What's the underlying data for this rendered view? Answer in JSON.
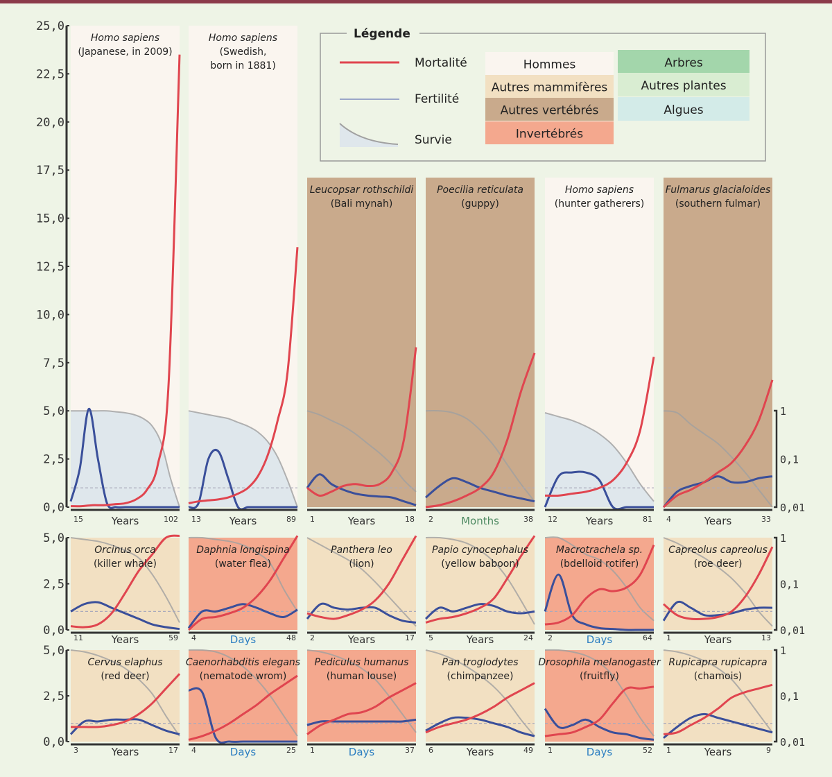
{
  "legend": {
    "title": "Légende",
    "lines": [
      "Mortalité",
      "Fertilité",
      "Survie"
    ],
    "categories": [
      {
        "label": "Hommes",
        "color": "#faf5ef"
      },
      {
        "label": "Autres mammifères",
        "color": "#f2e0c2"
      },
      {
        "label": "Autres vertébrés",
        "color": "#c9aa8c"
      },
      {
        "label": "Invertébrés",
        "color": "#f4a88e"
      },
      {
        "label": "Arbres",
        "color": "#a3d6ab"
      },
      {
        "label": "Autres plantes",
        "color": "#d9edd2"
      },
      {
        "label": "Algues",
        "color": "#d3ebe8"
      }
    ]
  },
  "colors": {
    "mortality": "#e0454f",
    "fertility": "#3a4f9a",
    "survival": "#a0a0a0",
    "survival_fill": "#dfe7ec",
    "unit_days": "#2d7fc1",
    "unit_months": "#4f8a63",
    "frame": "#8b3a4a"
  },
  "chart_data": {
    "type": "line",
    "row1_left_ticks": [
      "25,0",
      "22,5",
      "20,0",
      "17,5",
      "15,0",
      "12,5",
      "10,0",
      "7,5",
      "5,0",
      "2,5",
      "0,0"
    ],
    "row_left_ticks": [
      "5,0",
      "2,5",
      "0,0"
    ],
    "right_ticks": [
      "1",
      "0,1",
      "0,01"
    ],
    "panels": [
      {
        "row": 1,
        "species": "Homo sapiens",
        "common": [
          "(Japanese, in 2009)"
        ],
        "category": "Hommes",
        "unit": "Years",
        "range": [
          15,
          102
        ],
        "tall": true,
        "mortality": [
          0.05,
          0.05,
          0.1,
          0.1,
          0.15,
          0.2,
          0.4,
          0.9,
          2.2,
          6.5,
          23.5
        ],
        "fertility": [
          0.3,
          2,
          5.1,
          2.5,
          0.2,
          0,
          0,
          0,
          0,
          0,
          0,
          0,
          0
        ],
        "survival": [
          5,
          5,
          5,
          5,
          5,
          4.95,
          4.9,
          4.8,
          4.6,
          4.2,
          3.3,
          1.5,
          0
        ]
      },
      {
        "row": 1,
        "species": "Homo sapiens",
        "common": [
          "(Swedish,",
          "born in 1881)"
        ],
        "category": "Hommes",
        "unit": "Years",
        "range": [
          13,
          89
        ],
        "tall": true,
        "mortality": [
          0.2,
          0.3,
          0.35,
          0.4,
          0.5,
          0.7,
          1.0,
          1.6,
          2.7,
          4.5,
          7,
          13.5
        ],
        "fertility": [
          0,
          0.2,
          2.5,
          2.9,
          1.5,
          0,
          0,
          0,
          0,
          0,
          0,
          0
        ],
        "survival": [
          5,
          4.9,
          4.8,
          4.7,
          4.6,
          4.4,
          4.2,
          3.9,
          3.4,
          2.6,
          1.4,
          0
        ]
      },
      {
        "row": 1,
        "species": "Leucopsar rothschildi",
        "common": [
          "(Bali mynah)"
        ],
        "category": "Autres vertébrés",
        "unit": "Years",
        "range": [
          1,
          18
        ],
        "mortality": [
          1,
          0.6,
          0.8,
          1.1,
          1.2,
          1.1,
          1.2,
          1.8,
          3.5,
          8.3
        ],
        "fertility": [
          1,
          1.7,
          1.2,
          0.9,
          0.7,
          0.6,
          0.55,
          0.5,
          0.3,
          0.1
        ],
        "survival": [
          5,
          4.8,
          4.5,
          4.2,
          3.8,
          3.3,
          2.8,
          2.2,
          1.4,
          0.8
        ]
      },
      {
        "row": 1,
        "species": "Poecilia reticulata",
        "common": [
          "(guppy)"
        ],
        "category": "Autres vertébrés",
        "unit": "Months",
        "range": [
          2,
          38
        ],
        "mortality": [
          0,
          0.1,
          0.3,
          0.6,
          1,
          1.8,
          3.5,
          6,
          8
        ],
        "fertility": [
          0.5,
          1.1,
          1.5,
          1.3,
          1,
          0.8,
          0.6,
          0.45,
          0.3
        ],
        "survival": [
          5,
          5,
          4.9,
          4.6,
          4,
          3.2,
          2.2,
          1.2,
          0.3
        ]
      },
      {
        "row": 1,
        "species": "Homo sapiens",
        "common": [
          "(hunter gatherers)"
        ],
        "category": "Hommes",
        "unit": "Years",
        "range": [
          12,
          81
        ],
        "mortality": [
          0.6,
          0.6,
          0.7,
          0.8,
          1,
          1.4,
          2.3,
          4,
          7.8
        ],
        "fertility": [
          0,
          1.6,
          1.8,
          1.8,
          1.4,
          0,
          0,
          0,
          0
        ],
        "survival": [
          4.9,
          4.7,
          4.5,
          4.2,
          3.8,
          3.2,
          2.3,
          1.2,
          0.3
        ]
      },
      {
        "row": 1,
        "species": "Fulmarus glacialoides",
        "common": [
          "(southern fulmar)"
        ],
        "category": "Autres vertébrés",
        "unit": "Years",
        "range": [
          4,
          33
        ],
        "mortality": [
          0,
          0.6,
          0.9,
          1.3,
          1.8,
          2.3,
          3.2,
          4.5,
          6.6
        ],
        "fertility": [
          0,
          0.8,
          1.1,
          1.3,
          1.6,
          1.3,
          1.3,
          1.5,
          1.6
        ],
        "survival": [
          5,
          4.9,
          4.3,
          3.8,
          3.3,
          2.6,
          1.8,
          0.9,
          0
        ]
      },
      {
        "row": 2,
        "species": "Orcinus orca",
        "common": [
          "(killer whale)"
        ],
        "category": "Autres mammifères",
        "unit": "Years",
        "range": [
          11,
          59
        ],
        "mortality": [
          0.2,
          0.15,
          0.3,
          0.9,
          2,
          3.2,
          4.1,
          5,
          5.6
        ],
        "fertility": [
          1,
          1.4,
          1.5,
          1.2,
          0.9,
          0.6,
          0.3,
          0.15,
          0.05
        ],
        "survival": [
          5,
          4.9,
          4.8,
          4.6,
          4.3,
          3.9,
          3,
          1.8,
          0.4
        ]
      },
      {
        "row": 2,
        "species": "Daphnia longispina",
        "common": [
          "(water flea)"
        ],
        "category": "Invertébrés",
        "unit": "Days",
        "range": [
          4,
          48
        ],
        "mortality": [
          0,
          0.6,
          0.7,
          0.9,
          1.2,
          1.8,
          2.7,
          3.9,
          5.5
        ],
        "fertility": [
          0.1,
          1,
          1,
          1.2,
          1.4,
          1.2,
          0.9,
          0.7,
          1.1
        ],
        "survival": [
          5,
          5,
          4.9,
          4.8,
          4.6,
          4.2,
          3.6,
          2.2,
          1
        ]
      },
      {
        "row": 2,
        "species": "Panthera leo",
        "common": [
          "(lion)"
        ],
        "category": "Autres mammifères",
        "unit": "Years",
        "range": [
          2,
          17
        ],
        "mortality": [
          0.9,
          0.7,
          0.6,
          0.8,
          1.1,
          1.6,
          2.5,
          3.8,
          5.5
        ],
        "fertility": [
          0.6,
          1.4,
          1.2,
          1.1,
          1.2,
          1.2,
          0.8,
          0.5,
          0.4
        ],
        "survival": [
          5,
          4.6,
          4.2,
          3.8,
          3.3,
          2.6,
          1.8,
          1,
          0.2
        ]
      },
      {
        "row": 2,
        "species": "Papio cynocephalus",
        "common": [
          "(yellow baboon)"
        ],
        "category": "Autres mammifères",
        "unit": "Years",
        "range": [
          5,
          24
        ],
        "mortality": [
          0.4,
          0.6,
          0.7,
          0.9,
          1.2,
          1.7,
          2.8,
          4,
          5.4
        ],
        "fertility": [
          0.6,
          1.2,
          1,
          1.2,
          1.4,
          1.3,
          1,
          0.9,
          1
        ],
        "survival": [
          5,
          5,
          4.9,
          4.7,
          4.3,
          3.7,
          2.8,
          1.6,
          0.3
        ]
      },
      {
        "row": 2,
        "species": "Macrotrachela sp.",
        "common": [
          "(bdelloid rotifer)"
        ],
        "category": "Invertébrés",
        "unit": "Days",
        "range": [
          2,
          64
        ],
        "mortality": [
          0.3,
          0.4,
          0.8,
          1.7,
          2.2,
          2.1,
          2.3,
          3,
          4.6
        ],
        "fertility": [
          1,
          3,
          0.8,
          0.3,
          0.1,
          0.05,
          0,
          0,
          0
        ],
        "survival": [
          5,
          5,
          4.6,
          4.1,
          3.8,
          3.2,
          2.3,
          1.2,
          0.5
        ]
      },
      {
        "row": 2,
        "species": "Capreolus capreolus",
        "common": [
          "(roe deer)"
        ],
        "category": "Autres mammifères",
        "unit": "Years",
        "range": [
          1,
          13
        ],
        "mortality": [
          1.4,
          0.8,
          0.6,
          0.6,
          0.7,
          1,
          1.8,
          3,
          4.5
        ],
        "fertility": [
          0.5,
          1.5,
          1.2,
          0.8,
          0.8,
          0.9,
          1.1,
          1.2,
          1.2
        ],
        "survival": [
          5,
          4.7,
          4.3,
          3.9,
          3.4,
          2.8,
          2,
          1,
          0.2
        ]
      },
      {
        "row": 3,
        "species": "Cervus elaphus",
        "common": [
          "(red deer)"
        ],
        "category": "Autres mammifères",
        "unit": "Years",
        "range": [
          3,
          17
        ],
        "mortality": [
          0.8,
          0.8,
          0.8,
          0.9,
          1.1,
          1.5,
          2.1,
          2.9,
          3.7
        ],
        "fertility": [
          0.4,
          1.1,
          1.1,
          1.2,
          1.2,
          1.2,
          0.9,
          0.6,
          0.4
        ],
        "survival": [
          5,
          4.9,
          4.7,
          4.4,
          4,
          3.4,
          2.6,
          1.4,
          0.3
        ]
      },
      {
        "row": 3,
        "species": "Caenorhabditis elegans",
        "common": [
          "(nematode wrom)"
        ],
        "category": "Invertébrés",
        "unit": "Days",
        "range": [
          4,
          25
        ],
        "mortality": [
          0.1,
          0.3,
          0.6,
          1,
          1.5,
          2,
          2.6,
          3.1,
          3.6
        ],
        "fertility": [
          2.8,
          2.7,
          0.2,
          0,
          0,
          0,
          0,
          0,
          0
        ],
        "survival": [
          5,
          5,
          4.9,
          4.6,
          4.1,
          3.4,
          2.5,
          1.4,
          0.3
        ]
      },
      {
        "row": 3,
        "species": "Pediculus humanus",
        "common": [
          "(human louse)"
        ],
        "category": "Invertébrés",
        "unit": "Days",
        "range": [
          1,
          37
        ],
        "mortality": [
          0.4,
          0.9,
          1.2,
          1.5,
          1.6,
          1.9,
          2.4,
          2.8,
          3.2
        ],
        "fertility": [
          0.9,
          1.1,
          1.1,
          1.1,
          1.1,
          1.1,
          1.1,
          1.1,
          1.2
        ],
        "survival": [
          5,
          4.9,
          4.7,
          4.4,
          4,
          3.4,
          2.5,
          1.5,
          0.5
        ]
      },
      {
        "row": 3,
        "species": "Pan troglodytes",
        "common": [
          "(chimpanzee)"
        ],
        "category": "Autres mammifères",
        "unit": "Years",
        "range": [
          6,
          49
        ],
        "mortality": [
          0.5,
          0.8,
          1,
          1.2,
          1.5,
          1.9,
          2.4,
          2.8,
          3.2
        ],
        "fertility": [
          0.6,
          1,
          1.3,
          1.3,
          1.2,
          1,
          0.8,
          0.5,
          0.3
        ],
        "survival": [
          5,
          4.8,
          4.5,
          4.1,
          3.6,
          3,
          2.2,
          1.2,
          0.3
        ]
      },
      {
        "row": 3,
        "species": "Drosophila melanogaster",
        "common": [
          "(fruitfly)"
        ],
        "category": "Invertébrés",
        "unit": "Days",
        "range": [
          1,
          52
        ],
        "mortality": [
          0.3,
          0.4,
          0.5,
          0.8,
          1.2,
          2.1,
          2.9,
          2.9,
          3
        ],
        "fertility": [
          1.8,
          0.8,
          0.9,
          1.2,
          0.8,
          0.5,
          0.4,
          0.2,
          0.1
        ],
        "survival": [
          5,
          5,
          4.9,
          4.7,
          4.3,
          3.6,
          2.5,
          1.3,
          0.3
        ]
      },
      {
        "row": 3,
        "species": "Rupicapra rupicapra",
        "common": [
          "(chamois)"
        ],
        "category": "Autres mammifères",
        "unit": "Years",
        "range": [
          1,
          9
        ],
        "mortality": [
          0.4,
          0.5,
          0.9,
          1.3,
          1.8,
          2.4,
          2.7,
          2.9,
          3.1
        ],
        "fertility": [
          0.2,
          0.8,
          1.3,
          1.5,
          1.3,
          1.1,
          0.9,
          0.7,
          0.5
        ],
        "survival": [
          5,
          4.9,
          4.7,
          4.4,
          4,
          3.4,
          2.5,
          1.5,
          0.5
        ]
      }
    ]
  }
}
